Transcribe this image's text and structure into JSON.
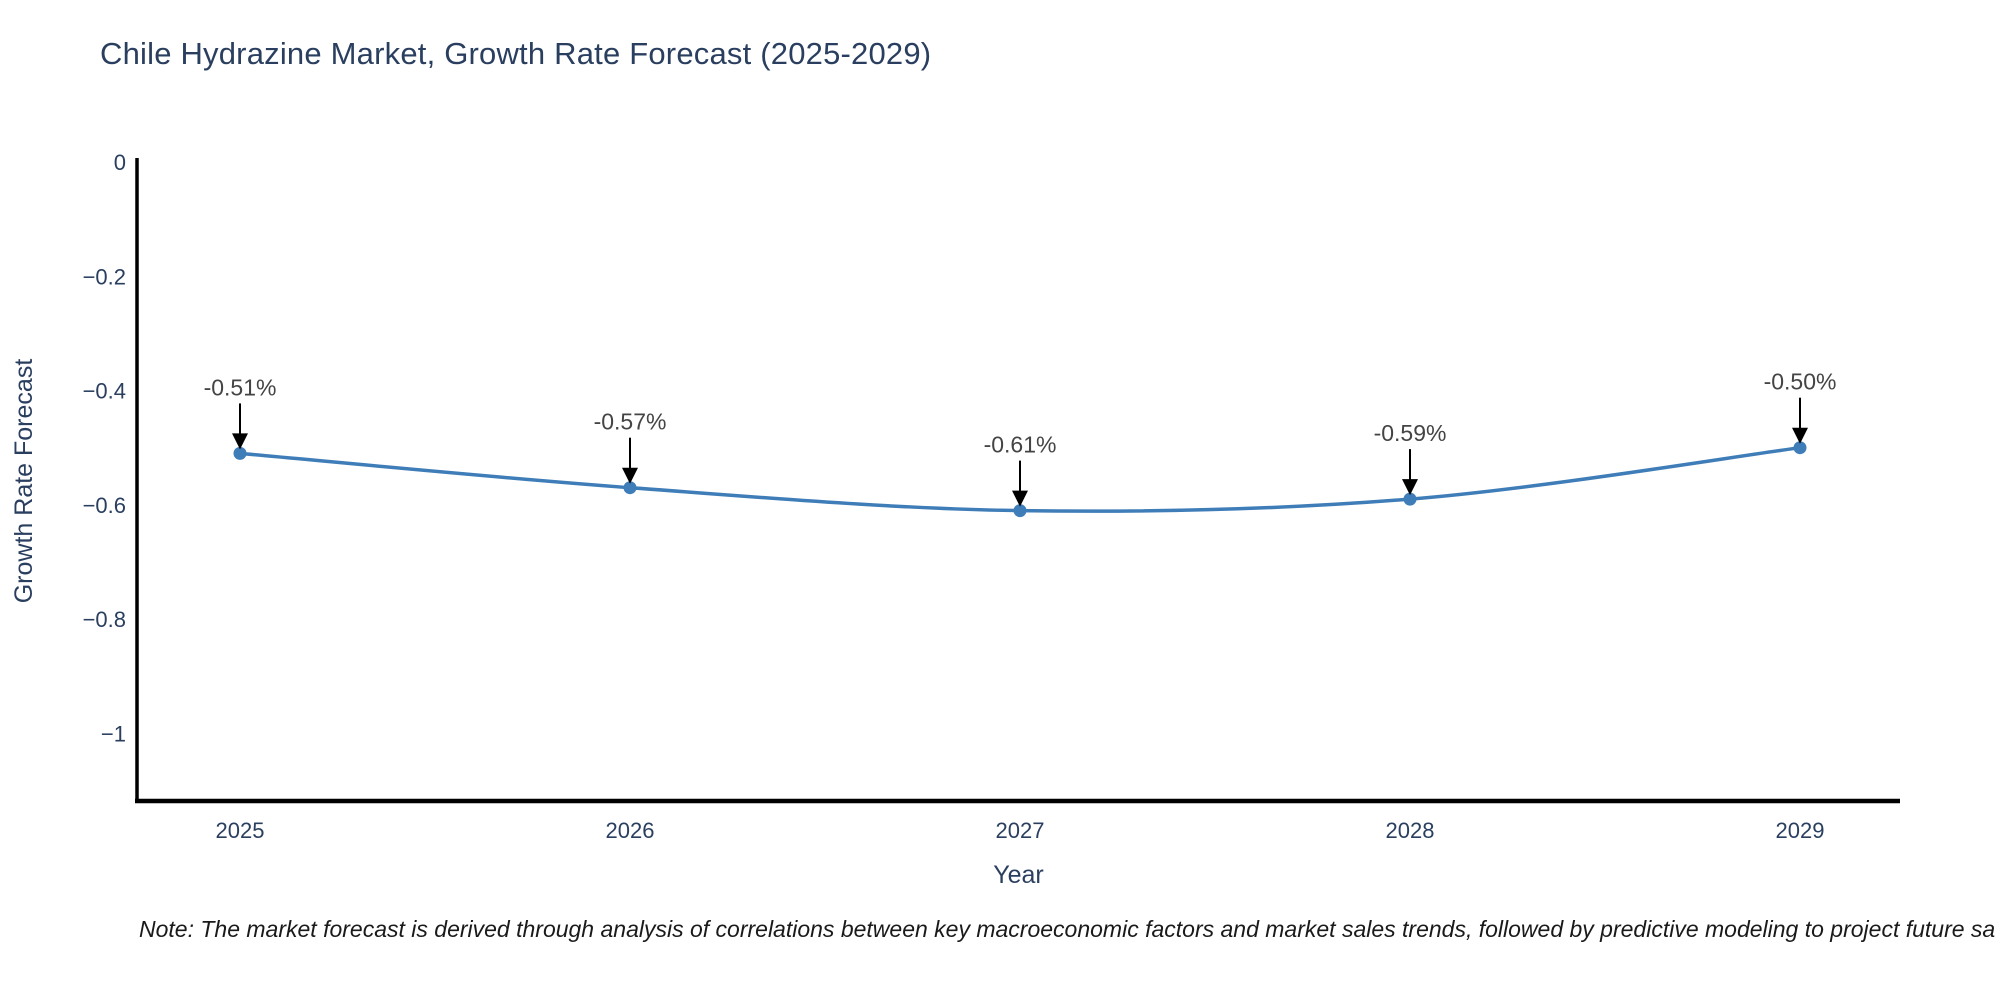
{
  "title": "Chile Hydrazine Market, Growth Rate Forecast (2025-2029)",
  "note": "Note: The market forecast is derived through analysis of correlations between key macroeconomic factors and market sales trends, followed by predictive modeling to project future sa",
  "chart_data": {
    "type": "line",
    "title": "Chile Hydrazine Market, Growth Rate Forecast (2025-2029)",
    "x": [
      "2025",
      "2026",
      "2027",
      "2028",
      "2029"
    ],
    "series": [
      {
        "name": "Growth Rate Forecast",
        "values": [
          -0.51,
          -0.57,
          -0.61,
          -0.59,
          -0.5
        ]
      }
    ],
    "point_labels": [
      "-0.51%",
      "-0.57%",
      "-0.61%",
      "-0.59%",
      "-0.50%"
    ],
    "xlabel": "Year",
    "ylabel": "Growth Rate Forecast",
    "ylim": [
      -1.12,
      0
    ],
    "yticks": [
      0,
      -0.2,
      -0.4,
      -0.6,
      -0.8,
      -1
    ],
    "ytick_labels": [
      "0",
      "−0.2",
      "−0.4",
      "−0.6",
      "−0.8",
      "−1"
    ],
    "grid": false,
    "legend": "none",
    "line_shape": "spline",
    "annotation_style": "arrow-down-to-point",
    "colors": {
      "line": "#3f7db8",
      "marker": "#3f7db8",
      "axis": "#000000",
      "tick_text": "#2a3f5f",
      "title_text": "#2a3f5f",
      "annotation_text": "#444444",
      "annotation_arrow": "#000000",
      "background": "#ffffff"
    }
  }
}
